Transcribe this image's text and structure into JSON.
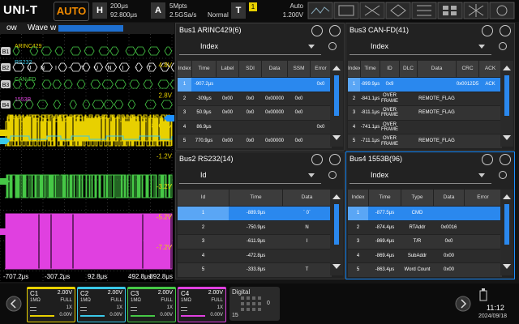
{
  "top_bar": {
    "logo": "UNI-T",
    "mode": "AUTO",
    "horizontal": {
      "label": "H",
      "scale": "200μs",
      "offset": "92.800μs"
    },
    "acquire": {
      "label": "A",
      "depth": "5Mpts",
      "rate": "2.5GSa/s",
      "mode": "Normal"
    },
    "trigger": {
      "label": "T",
      "source": "1",
      "sweep": "Auto",
      "level": "1.200V"
    }
  },
  "wave_panel": {
    "title_left": "ow",
    "title": "Wave w",
    "bus_tags": [
      "B1",
      "B2",
      "B3",
      "B4"
    ],
    "bus_labels": [
      "ARINC429",
      "RS232",
      "CAN-FD",
      "1553B"
    ],
    "rs232_decode": [
      "U",
      "N",
      "I",
      "-",
      "T",
      "U",
      "N",
      "I",
      "-",
      "T"
    ],
    "levels": [
      "4.8V",
      "2.8V",
      "800mV",
      "-1.2V",
      "-3.2V",
      "-5.2V",
      "-7.2V"
    ],
    "time_labels": [
      "-707.2μs",
      "-307.2μs",
      "92.8μs",
      "492.8μs",
      "892.8μs"
    ]
  },
  "panels": [
    {
      "title": "Bus1 ARINC429(6)",
      "filter": "Index",
      "columns": [
        "Index",
        "Time",
        "Label",
        "SDI",
        "Data",
        "SSM",
        "Error"
      ],
      "rows": [
        [
          "1",
          "-907.2μs",
          null,
          null,
          null,
          null,
          "0x0"
        ],
        [
          "2",
          "-309μs",
          "0x00",
          "0x0",
          "0x00000",
          "0x0",
          null
        ],
        [
          "3",
          "50.9μs",
          "0x00",
          "0x0",
          "0x00000",
          "0x0",
          null
        ],
        [
          "4",
          "86.9μs",
          null,
          null,
          null,
          null,
          "0x0"
        ],
        [
          "5",
          "770.9μs",
          "0x00",
          "0x0",
          "0x00000",
          "0x0",
          null
        ]
      ]
    },
    {
      "title": "Bus3 CAN-FD(41)",
      "filter": "Index",
      "columns": [
        "Index",
        "Time",
        "ID",
        "DLC",
        "Data",
        "CRC",
        "ACK"
      ],
      "rows": [
        [
          "1",
          "-899.9μs",
          "0x9",
          null,
          null,
          "0x0012D5",
          "ACK"
        ],
        [
          "2",
          "-841.1μs",
          "OVER FRAME",
          null,
          "REMOTE_FLAG",
          null,
          null
        ],
        [
          "3",
          "-811.1μs",
          "OVER FRAME",
          null,
          "REMOTE_FLAG",
          null,
          null
        ],
        [
          "4",
          "-741.1μs",
          "OVER FRAME",
          null,
          null,
          null,
          null
        ],
        [
          "5",
          "-711.1μs",
          "OVER FRAME",
          null,
          "REMOTE_FLAG",
          null,
          null
        ]
      ]
    },
    {
      "title": "Bus2 RS232(14)",
      "filter": "Id",
      "columns": [
        "Id",
        "Time",
        "Data"
      ],
      "rows": [
        [
          "1",
          "-889.9μs",
          "` 0`"
        ],
        [
          "2",
          "-750.9μs",
          "N"
        ],
        [
          "3",
          "-611.9μs",
          "I"
        ],
        [
          "4",
          "-472.8μs",
          null
        ],
        [
          "5",
          "-333.8μs",
          "T"
        ]
      ]
    },
    {
      "title": "Bus4 1553B(96)",
      "filter": "Index",
      "columns": [
        "Index",
        "Time",
        "Type",
        "Data",
        "Error"
      ],
      "rows": [
        [
          "1",
          "-877.5μs",
          "CMD",
          null,
          null
        ],
        [
          "2",
          "-874.4μs",
          "RTAddr",
          "0x0016",
          null
        ],
        [
          "3",
          "-869.4μs",
          "T/R",
          "0x0",
          null
        ],
        [
          "4",
          "-869.4μs",
          "SubAddr",
          "0x00",
          null
        ],
        [
          "5",
          "-863.4μs",
          "Word Count",
          "0x00",
          null
        ]
      ]
    }
  ],
  "channels": [
    {
      "name": "C1",
      "scale": "2.00V",
      "impedance": "1MΩ",
      "bandwidth": "FULL",
      "probe": "1X",
      "offset": "0.00V"
    },
    {
      "name": "C2",
      "scale": "2.00V",
      "impedance": "1MΩ",
      "bandwidth": "FULL",
      "probe": "1X",
      "offset": "0.00V"
    },
    {
      "name": "C3",
      "scale": "2.00V",
      "impedance": "1MΩ",
      "bandwidth": "FULL",
      "probe": "1X",
      "offset": "0.00V"
    },
    {
      "name": "C4",
      "scale": "2.00V",
      "impedance": "1MΩ",
      "bandwidth": "FULL",
      "probe": "1X",
      "offset": "0.00V"
    }
  ],
  "digital": {
    "label": "Digital",
    "low": "0",
    "high": "15"
  },
  "clock": {
    "time": "11:12",
    "date": "2024/09/18"
  }
}
